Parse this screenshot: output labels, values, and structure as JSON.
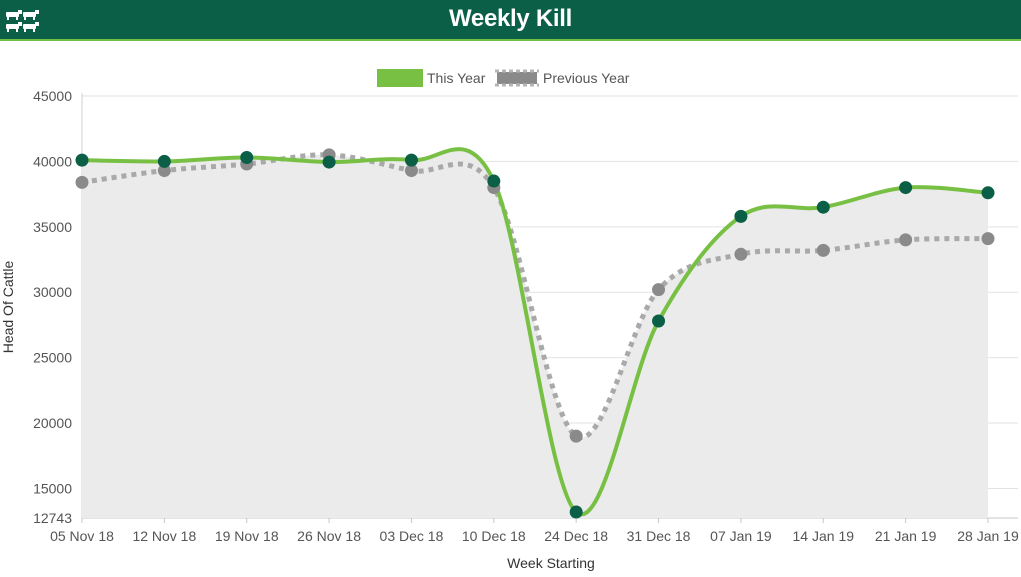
{
  "header": {
    "title": "Weekly Kill",
    "icon": "cattle-icon"
  },
  "colors": {
    "header_bg": "#0b5f46",
    "this_year": "#78c044",
    "this_year_marker": "#0b5f46",
    "previous_year": "#a9a9a9",
    "previous_year_marker": "#8a8a8a",
    "area_fill": "#ebebeb"
  },
  "chart_data": {
    "type": "line",
    "title": "",
    "xlabel": "Week Starting",
    "ylabel": "Head Of Cattle",
    "categories": [
      "05 Nov 18",
      "12 Nov 18",
      "19 Nov 18",
      "26 Nov 18",
      "03 Dec 18",
      "10 Dec 18",
      "24 Dec 18",
      "31 Dec 18",
      "07 Jan 19",
      "14 Jan 19",
      "21 Jan 19",
      "28 Jan 19"
    ],
    "yticks": [
      "12743",
      "15000",
      "20000",
      "25000",
      "30000",
      "35000",
      "40000",
      "45000"
    ],
    "ylim": [
      12743,
      45000
    ],
    "legend_position": "top-center",
    "grid": true,
    "series": [
      {
        "name": "This Year",
        "style": "solid",
        "values": [
          40100,
          40000,
          40300,
          39950,
          40100,
          38500,
          13200,
          27800,
          35800,
          36500,
          38000,
          37600
        ]
      },
      {
        "name": "Previous Year",
        "style": "dotted",
        "values": [
          38400,
          39300,
          39800,
          40500,
          39300,
          38000,
          19000,
          30200,
          32900,
          33200,
          34000,
          34100
        ]
      }
    ]
  }
}
